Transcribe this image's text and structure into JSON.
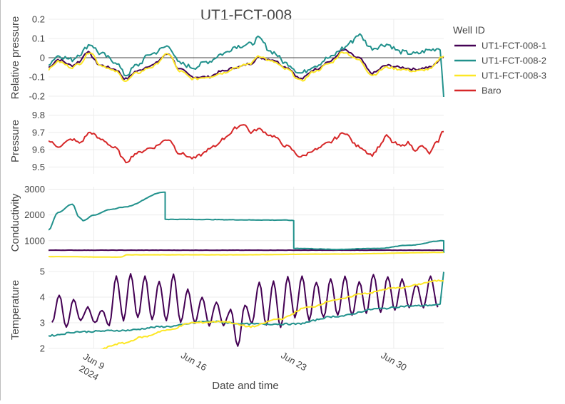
{
  "chart_data": {
    "type": "line",
    "title": "UT1-FCT-008",
    "xlabel": "Date and time",
    "x_range": [
      "2024-06-05T20:00",
      "2024-07-03T12:00"
    ],
    "x_ticks": [
      {
        "date": "2024-06-09",
        "label": "Jun 9",
        "sub": "2024"
      },
      {
        "date": "2024-06-16",
        "label": "Jun 16",
        "sub": ""
      },
      {
        "date": "2024-06-23",
        "label": "Jun 23",
        "sub": ""
      },
      {
        "date": "2024-06-30",
        "label": "Jun 30",
        "sub": ""
      }
    ],
    "legend": {
      "title": "Well ID",
      "position": "top-right",
      "items": [
        {
          "name": "UT1-FCT-008-1",
          "color": "#440154"
        },
        {
          "name": "UT1-FCT-008-2",
          "color": "#21918c"
        },
        {
          "name": "UT1-FCT-008-3",
          "color": "#fde725"
        },
        {
          "name": "Baro",
          "color": "#d62728"
        }
      ]
    },
    "subplots": [
      {
        "ylabel": "Relative pressure",
        "ylim": [
          -0.2,
          0.2
        ],
        "yticks": [
          "0.2",
          "0.1",
          "0",
          "-0.1",
          "-0.2"
        ],
        "ytick_values": [
          0.2,
          0.1,
          0,
          -0.1,
          -0.2
        ],
        "zeroline": true,
        "series": [
          {
            "name": "UT1-FCT-008-1",
            "color": "#440154",
            "x": [
              "2024-06-05T20:00",
              "2024-06-06T12:00",
              "2024-06-07T12:00",
              "2024-06-08T00:00",
              "2024-06-08T12:00",
              "2024-06-09T12:00",
              "2024-06-10T12:00",
              "2024-06-11T06:00",
              "2024-06-12T00:00",
              "2024-06-13T00:00",
              "2024-06-14T06:00",
              "2024-06-15T00:00",
              "2024-06-16T00:00",
              "2024-06-17T00:00",
              "2024-06-18T00:00",
              "2024-06-19T00:00",
              "2024-06-20T00:00",
              "2024-06-20T12:00",
              "2024-06-21T12:00",
              "2024-06-22T12:00",
              "2024-06-23T12:00",
              "2024-06-24T12:00",
              "2024-06-25T12:00",
              "2024-06-26T12:00",
              "2024-06-27T12:00",
              "2024-06-28T12:00",
              "2024-06-29T12:00",
              "2024-06-30T12:00",
              "2024-07-01T12:00",
              "2024-07-02T12:00",
              "2024-07-03T12:00"
            ],
            "y": [
              -0.05,
              -0.01,
              -0.04,
              -0.02,
              0.03,
              -0.04,
              -0.06,
              -0.11,
              -0.07,
              -0.04,
              0.02,
              -0.06,
              -0.1,
              -0.1,
              -0.07,
              -0.05,
              -0.03,
              0.0,
              -0.01,
              -0.05,
              -0.11,
              -0.06,
              -0.02,
              0.04,
              0.0,
              -0.08,
              -0.04,
              -0.05,
              -0.06,
              -0.05,
              0.0
            ]
          },
          {
            "name": "UT1-FCT-008-2",
            "color": "#21918c",
            "x": [
              "2024-06-05T20:00",
              "2024-06-06T12:00",
              "2024-06-07T12:00",
              "2024-06-08T00:00",
              "2024-06-08T18:00",
              "2024-06-09T12:00",
              "2024-06-10T12:00",
              "2024-06-11T06:00",
              "2024-06-12T00:00",
              "2024-06-13T00:00",
              "2024-06-14T06:00",
              "2024-06-15T00:00",
              "2024-06-16T00:00",
              "2024-06-17T00:00",
              "2024-06-18T00:00",
              "2024-06-19T00:00",
              "2024-06-20T00:00",
              "2024-06-20T12:00",
              "2024-06-21T12:00",
              "2024-06-22T12:00",
              "2024-06-23T12:00",
              "2024-06-24T12:00",
              "2024-06-25T12:00",
              "2024-06-26T12:00",
              "2024-06-27T00:00",
              "2024-06-27T12:00",
              "2024-06-28T12:00",
              "2024-06-29T12:00",
              "2024-06-30T12:00",
              "2024-07-01T12:00",
              "2024-07-02T12:00",
              "2024-07-03T06:00",
              "2024-07-03T12:00"
            ],
            "y": [
              -0.03,
              0.01,
              -0.01,
              0.02,
              0.07,
              0.02,
              -0.02,
              -0.09,
              -0.04,
              0.02,
              0.06,
              -0.03,
              -0.05,
              -0.02,
              0.02,
              0.06,
              0.07,
              0.1,
              0.03,
              -0.03,
              -0.08,
              -0.04,
              0.0,
              0.05,
              0.08,
              0.12,
              0.05,
              0.07,
              0.03,
              0.02,
              0.04,
              0.05,
              -0.2
            ]
          },
          {
            "name": "UT1-FCT-008-3",
            "color": "#fde725",
            "x": [
              "2024-06-05T20:00",
              "2024-06-06T12:00",
              "2024-06-07T12:00",
              "2024-06-08T00:00",
              "2024-06-08T18:00",
              "2024-06-09T12:00",
              "2024-06-10T12:00",
              "2024-06-11T06:00",
              "2024-06-12T00:00",
              "2024-06-13T00:00",
              "2024-06-14T06:00",
              "2024-06-15T00:00",
              "2024-06-16T00:00",
              "2024-06-17T00:00",
              "2024-06-18T00:00",
              "2024-06-19T00:00",
              "2024-06-20T00:00",
              "2024-06-20T12:00",
              "2024-06-21T12:00",
              "2024-06-22T12:00",
              "2024-06-23T12:00",
              "2024-06-24T12:00",
              "2024-06-25T12:00",
              "2024-06-26T12:00",
              "2024-06-27T12:00",
              "2024-06-28T12:00",
              "2024-06-29T12:00",
              "2024-06-30T12:00",
              "2024-07-01T12:00",
              "2024-07-02T12:00",
              "2024-07-03T12:00"
            ],
            "y": [
              -0.06,
              -0.02,
              -0.05,
              -0.03,
              0.03,
              -0.04,
              -0.07,
              -0.12,
              -0.08,
              -0.05,
              0.02,
              -0.07,
              -0.11,
              -0.1,
              -0.08,
              -0.05,
              -0.03,
              0.01,
              -0.02,
              -0.06,
              -0.12,
              -0.07,
              -0.03,
              0.03,
              -0.01,
              -0.09,
              -0.05,
              -0.06,
              -0.07,
              -0.06,
              0.01
            ]
          }
        ]
      },
      {
        "ylabel": "Pressure",
        "ylim": [
          9.46,
          9.84
        ],
        "yticks": [
          "9.8",
          "9.7",
          "9.6",
          "9.5"
        ],
        "ytick_values": [
          9.8,
          9.7,
          9.6,
          9.5
        ],
        "series": [
          {
            "name": "Baro",
            "color": "#d62728",
            "x": [
              "2024-06-05T20:00",
              "2024-06-06T12:00",
              "2024-06-07T12:00",
              "2024-06-08T00:00",
              "2024-06-08T18:00",
              "2024-06-09T12:00",
              "2024-06-10T12:00",
              "2024-06-11T06:00",
              "2024-06-12T00:00",
              "2024-06-13T00:00",
              "2024-06-14T06:00",
              "2024-06-15T00:00",
              "2024-06-16T00:00",
              "2024-06-16T12:00",
              "2024-06-17T00:00",
              "2024-06-17T12:00",
              "2024-06-18T00:00",
              "2024-06-18T12:00",
              "2024-06-19T00:00",
              "2024-06-19T12:00",
              "2024-06-20T00:00",
              "2024-06-20T12:00",
              "2024-06-21T12:00",
              "2024-06-22T12:00",
              "2024-06-23T12:00",
              "2024-06-24T12:00",
              "2024-06-25T12:00",
              "2024-06-26T00:00",
              "2024-06-26T12:00",
              "2024-06-27T12:00",
              "2024-06-28T12:00",
              "2024-06-29T00:00",
              "2024-06-29T12:00",
              "2024-06-30T00:00",
              "2024-06-30T12:00",
              "2024-07-01T00:00",
              "2024-07-01T12:00",
              "2024-07-02T00:00",
              "2024-07-02T12:00",
              "2024-07-03T00:00",
              "2024-07-03T12:00"
            ],
            "y": [
              9.65,
              9.62,
              9.66,
              9.64,
              9.7,
              9.66,
              9.61,
              9.53,
              9.58,
              9.61,
              9.66,
              9.58,
              9.55,
              9.57,
              9.6,
              9.62,
              9.66,
              9.69,
              9.73,
              9.75,
              9.7,
              9.72,
              9.68,
              9.62,
              9.56,
              9.6,
              9.64,
              9.67,
              9.7,
              9.62,
              9.57,
              9.62,
              9.68,
              9.64,
              9.62,
              9.64,
              9.6,
              9.62,
              9.58,
              9.64,
              9.71
            ]
          }
        ]
      },
      {
        "ylabel": "Conductivity",
        "ylim": [
          300,
          3100
        ],
        "yticks": [
          "3000",
          "2000",
          "1000"
        ],
        "ytick_values": [
          3000,
          2000,
          1000
        ],
        "series": [
          {
            "name": "UT1-FCT-008-1",
            "color": "#440154",
            "x": [
              "2024-06-05T20:00",
              "2024-06-12T00:00",
              "2024-06-19T00:00",
              "2024-06-26T00:00",
              "2024-07-03T12:00"
            ],
            "y": [
              630,
              630,
              630,
              630,
              630
            ]
          },
          {
            "name": "UT1-FCT-008-2",
            "color": "#21918c",
            "x": [
              "2024-06-05T20:00",
              "2024-06-06T12:00",
              "2024-06-07T12:00",
              "2024-06-08T00:00",
              "2024-06-08T06:00",
              "2024-06-09T00:00",
              "2024-06-10T06:00",
              "2024-06-11T00:00",
              "2024-06-14T00:00",
              "2024-06-14T00:01",
              "2024-06-22T12:00",
              "2024-06-23T00:00",
              "2024-06-23T00:01",
              "2024-06-26T00:00",
              "2024-06-29T00:00",
              "2024-07-01T00:00",
              "2024-07-03T12:00",
              "2024-07-03T12:01"
            ],
            "y": [
              1420,
              2100,
              2420,
              1900,
              1780,
              2000,
              2220,
              2300,
              2890,
              1830,
              1800,
              1780,
              700,
              660,
              700,
              820,
              1000,
              520
            ]
          },
          {
            "name": "UT1-FCT-008-3",
            "color": "#fde725",
            "x": [
              "2024-06-05T20:00",
              "2024-06-10T18:00",
              "2024-06-11T00:00",
              "2024-06-11T06:00",
              "2024-06-19T00:00",
              "2024-06-26T00:00",
              "2024-07-03T12:00"
            ],
            "y": [
              380,
              360,
              370,
              450,
              450,
              480,
              540
            ]
          }
        ]
      },
      {
        "ylabel": "Temperature",
        "ylim": [
          2,
          5
        ],
        "yticks": [
          "5",
          "4",
          "3",
          "2"
        ],
        "ytick_values": [
          5,
          4,
          3,
          2
        ],
        "series": [
          {
            "name": "UT1-FCT-008-1",
            "color": "#440154",
            "peaks_x": [
              "2024-06-06T14:00",
              "2024-06-07T14:00",
              "2024-06-08T14:00",
              "2024-06-09T14:00",
              "2024-06-10T14:00",
              "2024-06-11T14:00",
              "2024-06-12T14:00",
              "2024-06-13T14:00",
              "2024-06-14T14:00",
              "2024-06-15T14:00",
              "2024-06-16T14:00",
              "2024-06-17T14:00",
              "2024-06-18T14:00",
              "2024-06-19T14:00",
              "2024-06-20T14:00",
              "2024-06-21T14:00",
              "2024-06-22T14:00",
              "2024-06-23T14:00",
              "2024-06-24T14:00",
              "2024-06-25T14:00",
              "2024-06-26T14:00",
              "2024-06-27T14:00",
              "2024-06-28T14:00",
              "2024-06-29T14:00",
              "2024-06-30T14:00",
              "2024-07-01T14:00",
              "2024-07-02T14:00"
            ],
            "peaks_y": [
              4.1,
              3.9,
              3.6,
              3.5,
              4.8,
              4.9,
              4.8,
              4.6,
              4.9,
              4.3,
              4.0,
              3.8,
              3.5,
              3.7,
              4.6,
              4.6,
              4.8,
              4.8,
              4.6,
              4.7,
              4.8,
              4.6,
              4.9,
              4.8,
              4.7,
              4.5,
              4.8
            ],
            "troughs_x": [
              "2024-06-06T02:00",
              "2024-06-07T02:00",
              "2024-06-08T02:00",
              "2024-06-09T02:00",
              "2024-06-10T02:00",
              "2024-06-11T02:00",
              "2024-06-12T02:00",
              "2024-06-13T02:00",
              "2024-06-14T02:00",
              "2024-06-15T02:00",
              "2024-06-16T02:00",
              "2024-06-17T02:00",
              "2024-06-18T02:00",
              "2024-06-19T02:00",
              "2024-06-20T02:00",
              "2024-06-21T02:00",
              "2024-06-22T02:00",
              "2024-06-23T02:00",
              "2024-06-24T02:00",
              "2024-06-25T02:00",
              "2024-06-26T02:00",
              "2024-06-27T02:00",
              "2024-06-28T02:00",
              "2024-06-29T02:00",
              "2024-06-30T02:00",
              "2024-07-01T02:00",
              "2024-07-02T02:00",
              "2024-07-03T02:00"
            ],
            "troughs_y": [
              3.0,
              2.8,
              3.1,
              3.0,
              2.9,
              3.1,
              3.2,
              3.1,
              3.1,
              3.0,
              3.0,
              2.9,
              2.9,
              2.1,
              3.0,
              2.9,
              2.8,
              3.2,
              3.1,
              3.2,
              3.3,
              3.3,
              3.4,
              3.4,
              3.5,
              3.6,
              3.6,
              3.6
            ]
          },
          {
            "name": "UT1-FCT-008-2",
            "color": "#21918c",
            "x": [
              "2024-06-05T20:00",
              "2024-06-08T00:00",
              "2024-06-11T00:00",
              "2024-06-14T00:00",
              "2024-06-17T00:00",
              "2024-06-20T00:00",
              "2024-06-23T00:00",
              "2024-06-26T00:00",
              "2024-06-29T00:00",
              "2024-07-01T00:00",
              "2024-07-03T06:00",
              "2024-07-03T12:00"
            ],
            "y": [
              2.5,
              2.65,
              2.7,
              2.85,
              3.05,
              2.95,
              2.95,
              3.25,
              3.55,
              3.65,
              3.7,
              5.0
            ]
          },
          {
            "name": "UT1-FCT-008-3",
            "color": "#fde725",
            "x": [
              "2024-06-05T20:00",
              "2024-06-09T00:00",
              "2024-06-11T00:00",
              "2024-06-12T12:00",
              "2024-06-14T00:00",
              "2024-06-16T00:00",
              "2024-06-18T00:00",
              "2024-06-20T00:00",
              "2024-06-22T00:00",
              "2024-06-24T00:00",
              "2024-06-26T00:00",
              "2024-06-28T00:00",
              "2024-06-30T00:00",
              "2024-07-03T12:00"
            ],
            "y": [
              1.8,
              1.9,
              2.2,
              2.45,
              2.7,
              3.0,
              3.05,
              2.85,
              3.15,
              3.6,
              3.9,
              4.15,
              4.35,
              4.65
            ]
          }
        ]
      }
    ]
  }
}
